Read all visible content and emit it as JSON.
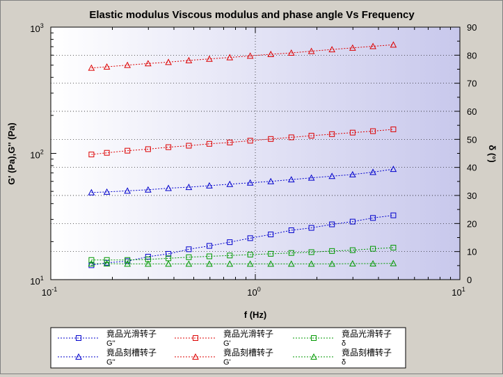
{
  "chart_data": {
    "type": "scatter",
    "title": "Elastic modulus Viscous modulus and phase angle Vs Frequency",
    "xlabel": "f (Hz)",
    "ylabel": "G' (Pa),G'' (Pa)",
    "y2label": "δ (°)",
    "x_scale": "log",
    "y_scale": "log",
    "xlim": [
      0.1,
      10
    ],
    "ylim": [
      10,
      1000
    ],
    "y2lim": [
      0,
      90
    ],
    "x_ticks": [
      {
        "base": "10",
        "exp": "-1",
        "value": 0.1
      },
      {
        "base": "10",
        "exp": "0",
        "value": 1
      },
      {
        "base": "10",
        "exp": "1",
        "value": 10
      }
    ],
    "y_ticks": [
      {
        "base": "10",
        "exp": "1",
        "value": 10
      },
      {
        "base": "10",
        "exp": "2",
        "value": 100
      },
      {
        "base": "10",
        "exp": "3",
        "value": 1000
      }
    ],
    "y2_ticks": [
      "0",
      "10",
      "20",
      "30",
      "40",
      "50",
      "60",
      "70",
      "80",
      "90"
    ],
    "grid": true,
    "x": [
      0.158,
      0.188,
      0.237,
      0.299,
      0.376,
      0.473,
      0.596,
      0.75,
      0.944,
      1.19,
      1.5,
      1.88,
      2.37,
      2.99,
      3.76,
      4.73
    ],
    "series": [
      {
        "name": "竟品光滑转子 G''",
        "marker": "square",
        "color": "#0000cc",
        "axis": "left",
        "values": [
          13.0,
          13.6,
          14.0,
          15.2,
          16.0,
          17.4,
          18.5,
          19.8,
          21.3,
          22.8,
          24.6,
          25.7,
          27.4,
          28.8,
          30.8,
          32.3
        ]
      },
      {
        "name": "竟品光滑转子 G'",
        "marker": "square",
        "color": "#dd0000",
        "axis": "left",
        "values": [
          98,
          101,
          105,
          108,
          112,
          115,
          119,
          122,
          126,
          130,
          134,
          138,
          142,
          146,
          150,
          155
        ]
      },
      {
        "name": "竟品光滑转子 δ",
        "marker": "square",
        "color": "#009900",
        "axis": "right",
        "values": [
          7.0,
          7.0,
          7.0,
          7.2,
          7.6,
          8.0,
          8.3,
          8.6,
          8.9,
          9.2,
          9.5,
          9.8,
          10.2,
          10.5,
          11.0,
          11.4
        ]
      },
      {
        "name": "竟品刻槽转子 G''",
        "marker": "triangle",
        "color": "#0000cc",
        "axis": "left",
        "values": [
          49,
          49.5,
          50.5,
          51.5,
          53,
          54,
          55.5,
          57,
          58.5,
          60,
          62,
          64,
          66,
          68,
          71,
          75
        ]
      },
      {
        "name": "竟品刻槽转子 G'",
        "marker": "triangle",
        "color": "#dd0000",
        "axis": "left",
        "values": [
          475,
          485,
          500,
          515,
          528,
          545,
          560,
          575,
          592,
          610,
          625,
          645,
          665,
          685,
          705,
          725
        ]
      },
      {
        "name": "竟品刻槽转子 δ",
        "marker": "triangle",
        "color": "#009900",
        "axis": "right",
        "values": [
          5.7,
          5.7,
          5.6,
          5.6,
          5.6,
          5.6,
          5.6,
          5.6,
          5.6,
          5.6,
          5.6,
          5.6,
          5.6,
          5.7,
          5.7,
          5.8
        ]
      }
    ],
    "legend": {
      "position": "bottom",
      "entries": [
        {
          "line1": "竟品光滑转子",
          "line2": "G''",
          "marker": "square",
          "color": "#0000cc"
        },
        {
          "line1": "竟品光滑转子",
          "line2": "G'",
          "marker": "square",
          "color": "#dd0000"
        },
        {
          "line1": "竟品光滑转子",
          "line2": "δ",
          "marker": "square",
          "color": "#009900"
        },
        {
          "line1": "竟品刻槽转子",
          "line2": "G''",
          "marker": "triangle",
          "color": "#0000cc"
        },
        {
          "line1": "竟品刻槽转子",
          "line2": "G'",
          "marker": "triangle",
          "color": "#dd0000"
        },
        {
          "line1": "竟品刻槽转子",
          "line2": "δ",
          "marker": "triangle",
          "color": "#009900"
        }
      ]
    }
  }
}
